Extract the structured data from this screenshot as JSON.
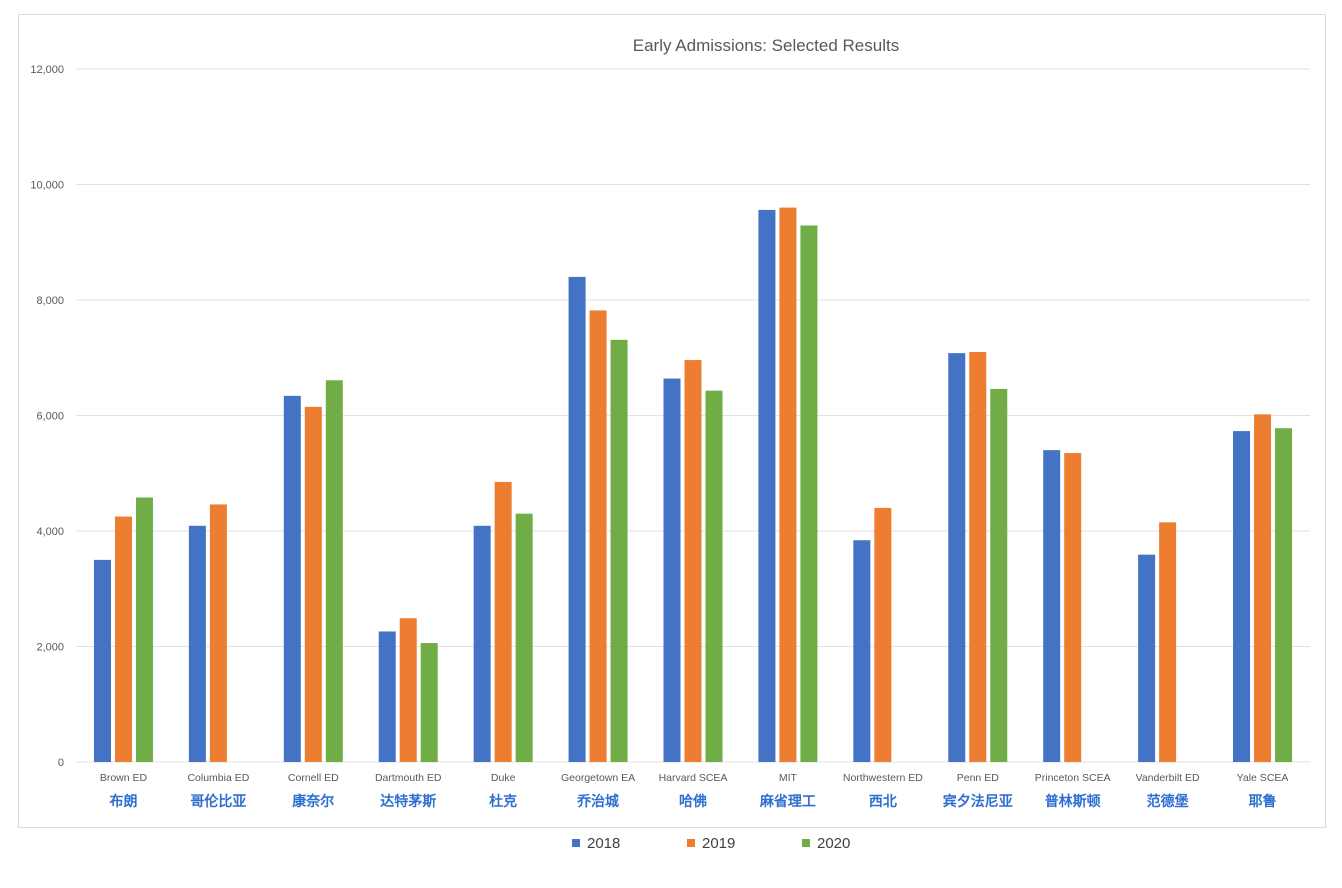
{
  "chart_data": {
    "type": "bar",
    "title": "Early Admissions: Selected Results",
    "categories": [
      "Brown ED",
      "Columbia ED",
      "Cornell ED",
      "Dartmouth ED",
      "Duke",
      "Georgetown EA",
      "Harvard SCEA",
      "MIT",
      "Northwestern ED",
      "Penn ED",
      "Princeton SCEA",
      "Vanderbilt ED",
      "Yale SCEA"
    ],
    "categories_cn": [
      "布朗",
      "哥伦比亚",
      "康奈尔",
      "达特茅斯",
      "杜克",
      "乔治城",
      "哈佛",
      "麻省理工",
      "西北",
      "宾夕法尼亚",
      "普林斯顿",
      "范德堡",
      "耶鲁"
    ],
    "series": [
      {
        "name": "2018",
        "color": "#4472c4",
        "values": [
          3500,
          4090,
          6340,
          2260,
          4090,
          8400,
          6640,
          9560,
          3840,
          7080,
          5400,
          3590,
          5730
        ]
      },
      {
        "name": "2019",
        "color": "#ed7d31",
        "values": [
          4250,
          4460,
          6150,
          2490,
          4850,
          7820,
          6960,
          9600,
          4400,
          7100,
          5350,
          4150,
          6020
        ]
      },
      {
        "name": "2020",
        "color": "#70ad47",
        "values": [
          4580,
          null,
          6610,
          2060,
          4300,
          7310,
          6430,
          9290,
          null,
          6460,
          null,
          null,
          5780
        ]
      }
    ],
    "yticks": [
      "0",
      "2,000",
      "4,000",
      "6,000",
      "8,000",
      "10,000",
      "12,000"
    ],
    "ylim": [
      0,
      12000
    ],
    "grid": true,
    "legend": "bottom-center",
    "xlabel": "",
    "ylabel": ""
  }
}
